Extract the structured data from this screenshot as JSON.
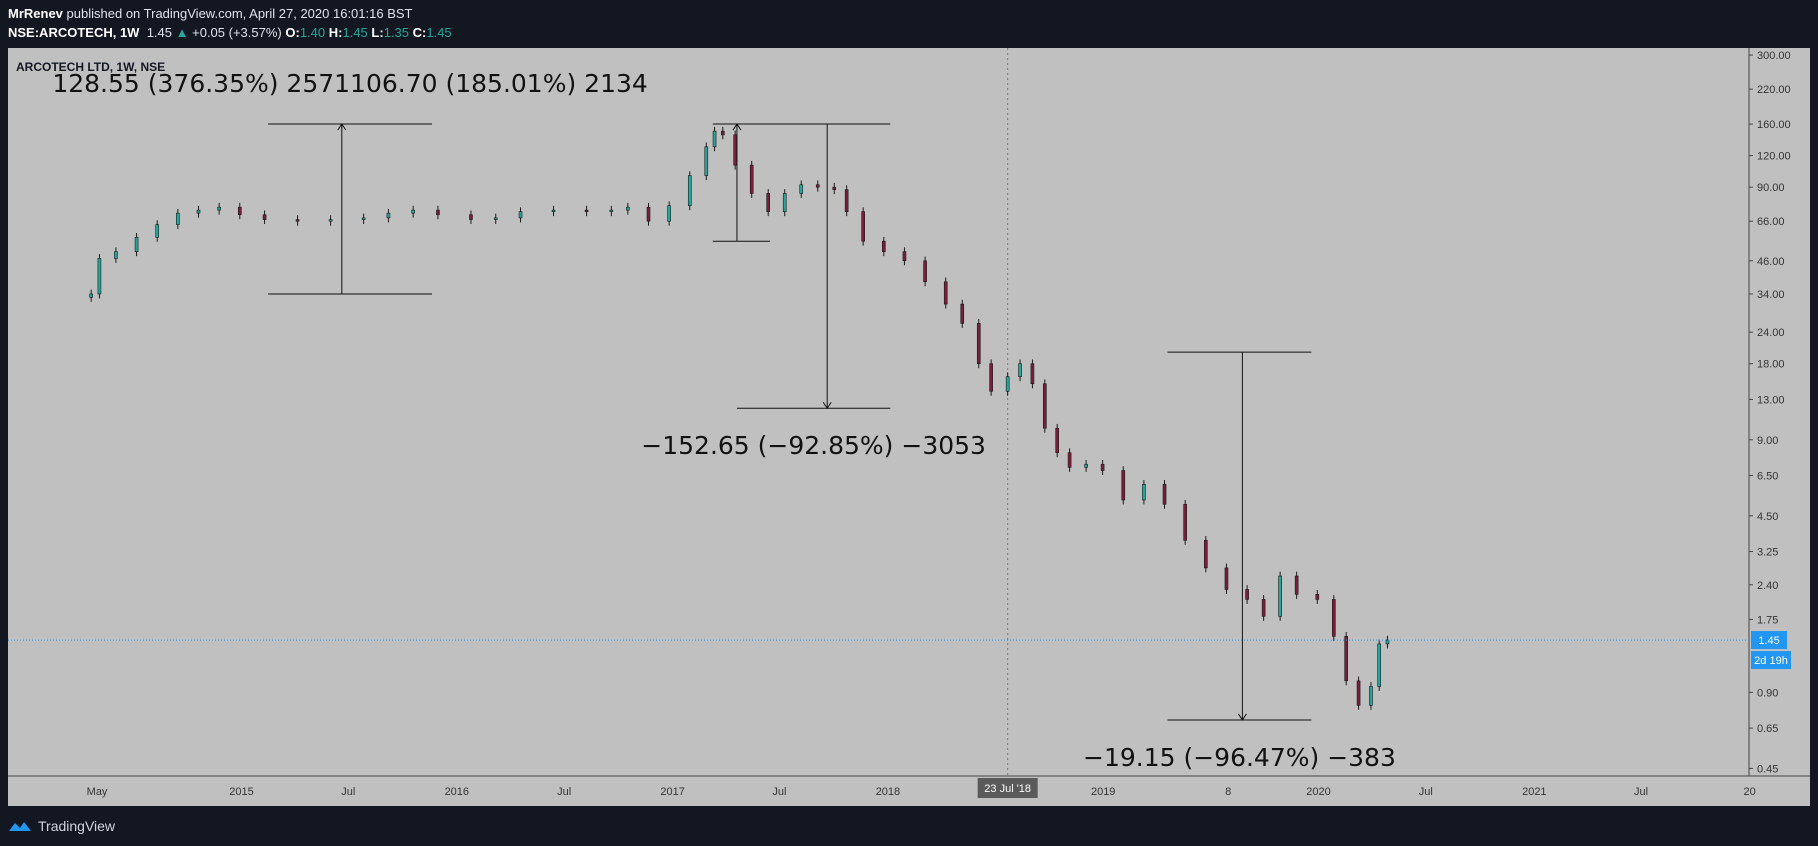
{
  "header": {
    "author": "MrRenev",
    "published_text": "published on TradingView.com, April 27, 2020 16:01:16 BST",
    "symbol": "NSE:ARCOTECH, 1W",
    "last": "1.45",
    "change": "+0.05 (+3.57%)",
    "open_label": "O:",
    "open": "1.40",
    "high_label": "H:",
    "high": "1.45",
    "low_label": "L:",
    "low": "1.35",
    "close_label": "C:",
    "close": "1.45"
  },
  "footer": {
    "brand": "TradingView"
  },
  "colors": {
    "background": "#131722",
    "pane": "#c0c0c0",
    "up": "#26a69a",
    "down": "#7a1f3a",
    "price_tag": "#2196f3"
  },
  "chart_data": {
    "type": "candlestick",
    "title": "ARCOTECH LTD, 1W, NSE",
    "yscale": "log",
    "ylim": [
      0.42,
      320
    ],
    "xlim": [
      "2013-12-01",
      "2021-12-31"
    ],
    "y_ticks": [
      "300.00",
      "220.00",
      "160.00",
      "120.00",
      "90.00",
      "66.00",
      "46.00",
      "34.00",
      "24.00",
      "18.00",
      "13.00",
      "9.00",
      "6.50",
      "4.50",
      "3.25",
      "2.40",
      "1.75",
      "0.90",
      "0.65",
      "0.45"
    ],
    "y_tick_values": [
      300,
      220,
      160,
      120,
      90,
      66,
      46,
      34,
      24,
      18,
      13,
      9,
      6.5,
      4.5,
      3.25,
      2.4,
      1.75,
      0.9,
      0.65,
      0.45
    ],
    "x_ticks": [
      {
        "label": "May",
        "date": "2014-05-01"
      },
      {
        "label": "2015",
        "date": "2015-01-01"
      },
      {
        "label": "Jul",
        "date": "2015-07-01"
      },
      {
        "label": "2016",
        "date": "2016-01-01"
      },
      {
        "label": "Jul",
        "date": "2016-07-01"
      },
      {
        "label": "2017",
        "date": "2017-01-01"
      },
      {
        "label": "Jul",
        "date": "2017-07-01"
      },
      {
        "label": "2018",
        "date": "2018-01-01"
      },
      {
        "label": "2019",
        "date": "2019-01-01"
      },
      {
        "label": "8",
        "date": "2019-08-01"
      },
      {
        "label": "2020",
        "date": "2020-01-01"
      },
      {
        "label": "Jul",
        "date": "2020-07-01"
      },
      {
        "label": "2021",
        "date": "2021-01-01"
      },
      {
        "label": "Jul",
        "date": "2021-07-01"
      },
      {
        "label": "20",
        "date": "2022-01-01"
      }
    ],
    "crosshair": {
      "label": "23 Jul '18",
      "date": "2018-07-23"
    },
    "last_price": {
      "value": 1.45,
      "label": "1.45",
      "countdown": "2d 19h"
    },
    "series": [
      {
        "date": "2014-04-21",
        "close": 34
      },
      {
        "date": "2014-05-05",
        "close": 47
      },
      {
        "date": "2014-06-02",
        "close": 50
      },
      {
        "date": "2014-07-07",
        "close": 57
      },
      {
        "date": "2014-08-11",
        "close": 64
      },
      {
        "date": "2014-09-15",
        "close": 71
      },
      {
        "date": "2014-10-20",
        "close": 73
      },
      {
        "date": "2014-11-24",
        "close": 75
      },
      {
        "date": "2014-12-29",
        "close": 70
      },
      {
        "date": "2015-02-09",
        "close": 67
      },
      {
        "date": "2015-04-06",
        "close": 66
      },
      {
        "date": "2015-06-01",
        "close": 67
      },
      {
        "date": "2015-07-27",
        "close": 68
      },
      {
        "date": "2015-09-07",
        "close": 71
      },
      {
        "date": "2015-10-19",
        "close": 73
      },
      {
        "date": "2015-11-30",
        "close": 70
      },
      {
        "date": "2016-01-25",
        "close": 67
      },
      {
        "date": "2016-03-07",
        "close": 68
      },
      {
        "date": "2016-04-18",
        "close": 72
      },
      {
        "date": "2016-06-13",
        "close": 73
      },
      {
        "date": "2016-08-08",
        "close": 72
      },
      {
        "date": "2016-09-19",
        "close": 73
      },
      {
        "date": "2016-10-17",
        "close": 75
      },
      {
        "date": "2016-11-21",
        "close": 66
      },
      {
        "date": "2016-12-26",
        "close": 76
      },
      {
        "date": "2017-01-30",
        "close": 100
      },
      {
        "date": "2017-02-27",
        "close": 130
      },
      {
        "date": "2017-03-13",
        "close": 150
      },
      {
        "date": "2017-03-27",
        "close": 145
      },
      {
        "date": "2017-04-17",
        "close": 110
      },
      {
        "date": "2017-05-15",
        "close": 85
      },
      {
        "date": "2017-06-12",
        "close": 72
      },
      {
        "date": "2017-07-10",
        "close": 85
      },
      {
        "date": "2017-08-07",
        "close": 92
      },
      {
        "date": "2017-09-04",
        "close": 90
      },
      {
        "date": "2017-10-02",
        "close": 88
      },
      {
        "date": "2017-10-23",
        "close": 72
      },
      {
        "date": "2017-11-20",
        "close": 55
      },
      {
        "date": "2017-12-25",
        "close": 50
      },
      {
        "date": "2018-01-29",
        "close": 46
      },
      {
        "date": "2018-03-05",
        "close": 38
      },
      {
        "date": "2018-04-09",
        "close": 31
      },
      {
        "date": "2018-05-07",
        "close": 26
      },
      {
        "date": "2018-06-04",
        "close": 18
      },
      {
        "date": "2018-06-25",
        "close": 14
      },
      {
        "date": "2018-07-23",
        "close": 16
      },
      {
        "date": "2018-08-13",
        "close": 18
      },
      {
        "date": "2018-09-03",
        "close": 15
      },
      {
        "date": "2018-09-24",
        "close": 10
      },
      {
        "date": "2018-10-15",
        "close": 8
      },
      {
        "date": "2018-11-05",
        "close": 7
      },
      {
        "date": "2018-12-03",
        "close": 7.2
      },
      {
        "date": "2018-12-31",
        "close": 6.8
      },
      {
        "date": "2019-02-04",
        "close": 5.2
      },
      {
        "date": "2019-03-11",
        "close": 6
      },
      {
        "date": "2019-04-15",
        "close": 5
      },
      {
        "date": "2019-05-20",
        "close": 3.6
      },
      {
        "date": "2019-06-24",
        "close": 2.8
      },
      {
        "date": "2019-07-29",
        "close": 2.3
      },
      {
        "date": "2019-09-02",
        "close": 2.1
      },
      {
        "date": "2019-09-30",
        "close": 1.8
      },
      {
        "date": "2019-10-28",
        "close": 2.6
      },
      {
        "date": "2019-11-25",
        "close": 2.2
      },
      {
        "date": "2019-12-30",
        "close": 2.1
      },
      {
        "date": "2020-01-27",
        "close": 1.5
      },
      {
        "date": "2020-02-17",
        "close": 1.0
      },
      {
        "date": "2020-03-09",
        "close": 0.8
      },
      {
        "date": "2020-03-30",
        "close": 0.95
      },
      {
        "date": "2020-04-13",
        "close": 1.4
      },
      {
        "date": "2020-04-27",
        "close": 1.45
      }
    ],
    "annotations": [
      {
        "type": "range",
        "x": "2015-06-20",
        "x1": "2015-02-15",
        "x2": "2015-11-20",
        "y_low": 34,
        "y_high": 160,
        "arrow": "up",
        "label": "128.55 (376.35%) 2571106.70 (185.01%) 2134"
      },
      {
        "type": "range",
        "x": "2017-04-20",
        "x1": "2017-03-10",
        "x2": "2017-06-15",
        "y_low": 55,
        "y_high": 160,
        "arrow": "up",
        "label": ""
      },
      {
        "type": "range",
        "x": "2017-09-20",
        "x1": "2017-04-20",
        "x2": "2018-01-05",
        "y_low": 12,
        "y_high": 160,
        "arrow": "down",
        "label": "−152.65 (−92.85%) −3053"
      },
      {
        "type": "range",
        "x": "2019-08-25",
        "x1": "2019-04-20",
        "x2": "2019-12-20",
        "y_low": 0.7,
        "y_high": 20,
        "arrow": "down",
        "label": "−19.15 (−96.47%) −383"
      }
    ]
  }
}
